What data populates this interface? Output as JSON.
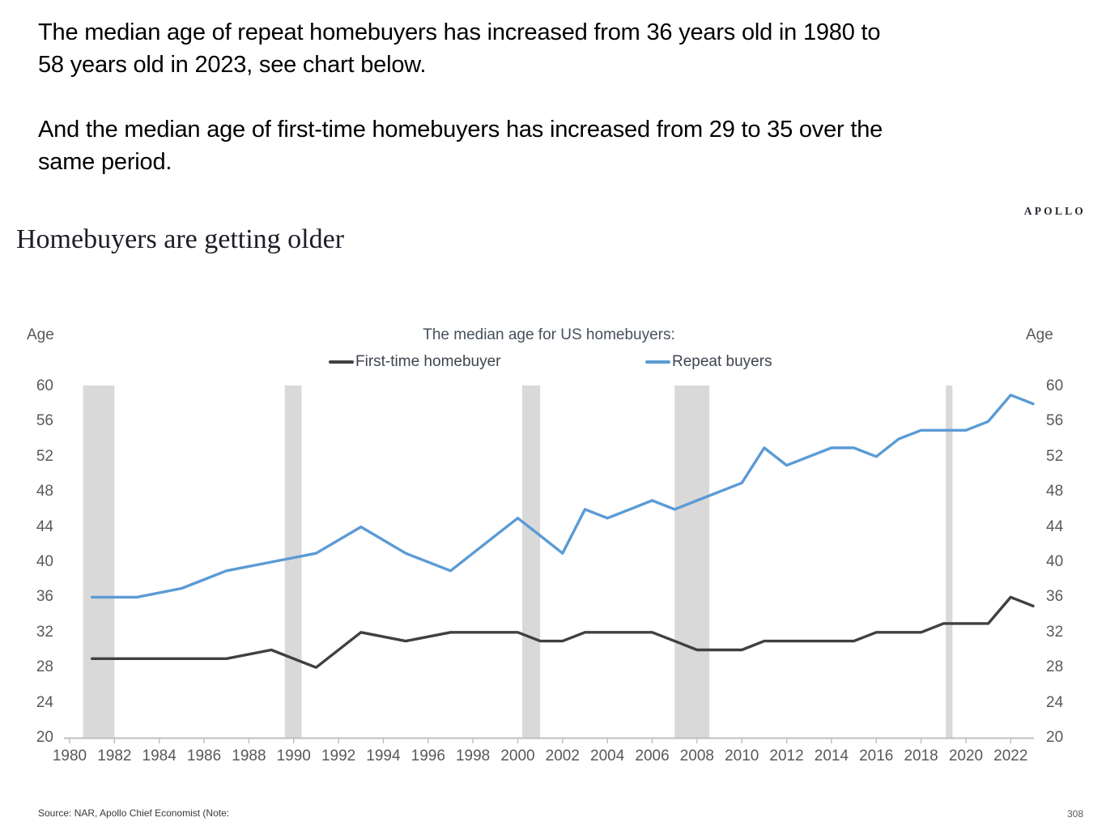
{
  "intro": {
    "paragraph1_lines": [
      "The median age of repeat homebuyers has increased from 36 years old in 1980 to",
      "58 years old in 2023, see chart below."
    ],
    "paragraph2_lines": [
      "And the median age of first-time homebuyers has increased from 29 to 35 over the",
      "same period."
    ]
  },
  "brand": "APOLLO",
  "footer": {
    "source_note": "Source: NAR, Apollo Chief Economist (Note:",
    "page_number": "308"
  },
  "chart_data": {
    "type": "line",
    "title": "Homebuyers are getting older",
    "legend_title": "The median age for US homebuyers:",
    "left_axis_label": "Age",
    "right_axis_label": "Age",
    "ylim": [
      20,
      60
    ],
    "xlim": [
      1980,
      2023
    ],
    "y_ticks": [
      60,
      56,
      52,
      48,
      44,
      40,
      36,
      32,
      28,
      24,
      20
    ],
    "x_ticks": [
      1980,
      1982,
      1984,
      1986,
      1988,
      1990,
      1992,
      1994,
      1996,
      1998,
      2000,
      2002,
      2004,
      2006,
      2008,
      2010,
      2012,
      2014,
      2016,
      2018,
      2020,
      2022
    ],
    "grid": false,
    "legend_position": "top",
    "band_color": "#d9d9d9",
    "axis_color": "#bfbfbf",
    "recession_bands": [
      [
        1980.6,
        1982.0
      ],
      [
        1989.6,
        1990.35
      ],
      [
        2000.2,
        2001.0
      ],
      [
        2007.0,
        2008.55
      ],
      [
        2019.1,
        2019.4
      ]
    ],
    "series": [
      {
        "name": "First-time homebuyer",
        "color": "#404040",
        "points": [
          [
            1981,
            29
          ],
          [
            1983,
            29
          ],
          [
            1985,
            29
          ],
          [
            1987,
            29
          ],
          [
            1989,
            30
          ],
          [
            1991,
            28
          ],
          [
            1993,
            32
          ],
          [
            1995,
            31
          ],
          [
            1997,
            32
          ],
          [
            1999,
            32
          ],
          [
            2000,
            32
          ],
          [
            2001,
            31
          ],
          [
            2002,
            31
          ],
          [
            2003,
            32
          ],
          [
            2004,
            32
          ],
          [
            2005,
            32
          ],
          [
            2006,
            32
          ],
          [
            2007,
            31
          ],
          [
            2008,
            30
          ],
          [
            2009,
            30
          ],
          [
            2010,
            30
          ],
          [
            2011,
            31
          ],
          [
            2012,
            31
          ],
          [
            2013,
            31
          ],
          [
            2014,
            31
          ],
          [
            2015,
            31
          ],
          [
            2016,
            32
          ],
          [
            2017,
            32
          ],
          [
            2018,
            32
          ],
          [
            2019,
            33
          ],
          [
            2020,
            33
          ],
          [
            2021,
            33
          ],
          [
            2022,
            36
          ],
          [
            2023,
            35
          ]
        ]
      },
      {
        "name": "Repeat buyers",
        "color": "#5b9bd5",
        "points": [
          [
            1981,
            36
          ],
          [
            1983,
            36
          ],
          [
            1985,
            37
          ],
          [
            1987,
            39
          ],
          [
            1989,
            40
          ],
          [
            1991,
            41
          ],
          [
            1993,
            44
          ],
          [
            1995,
            41
          ],
          [
            1997,
            39
          ],
          [
            1999,
            43
          ],
          [
            2000,
            45
          ],
          [
            2001,
            43
          ],
          [
            2002,
            41
          ],
          [
            2003,
            46
          ],
          [
            2004,
            45
          ],
          [
            2005,
            46
          ],
          [
            2006,
            47
          ],
          [
            2007,
            46
          ],
          [
            2008,
            47
          ],
          [
            2009,
            48
          ],
          [
            2010,
            49
          ],
          [
            2011,
            53
          ],
          [
            2012,
            51
          ],
          [
            2013,
            52
          ],
          [
            2014,
            53
          ],
          [
            2015,
            53
          ],
          [
            2016,
            52
          ],
          [
            2017,
            54
          ],
          [
            2018,
            55
          ],
          [
            2019,
            55
          ],
          [
            2020,
            55
          ],
          [
            2021,
            56
          ],
          [
            2022,
            59
          ],
          [
            2023,
            58
          ]
        ]
      }
    ]
  }
}
